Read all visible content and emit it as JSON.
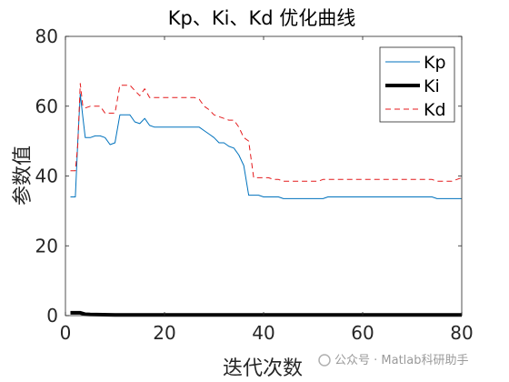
{
  "chart_data": {
    "type": "line",
    "title": "Kp、Ki、Kd 优化曲线",
    "xlabel": "迭代次数",
    "ylabel": "参数值",
    "xlim": [
      0,
      80
    ],
    "ylim": [
      0,
      80
    ],
    "xticks": [
      0,
      20,
      40,
      60,
      80
    ],
    "yticks": [
      0,
      20,
      40,
      60,
      80
    ],
    "grid": false,
    "legend_position": "top-right",
    "series": [
      {
        "name": "Kp",
        "color": "#0072BD",
        "style": "solid",
        "x": [
          1,
          2,
          2.5,
          3,
          3.5,
          4,
          5,
          6,
          7,
          8,
          9,
          10,
          11,
          12,
          13,
          14,
          15,
          16,
          17,
          18,
          19,
          20,
          21,
          22,
          23,
          24,
          25,
          26,
          27,
          28,
          29,
          30,
          31,
          32,
          33,
          34,
          35,
          36,
          37,
          38,
          39,
          40,
          41,
          42,
          43,
          44,
          45,
          46,
          47,
          48,
          49,
          50,
          51,
          52,
          53,
          54,
          55,
          56,
          57,
          58,
          59,
          60,
          61,
          62,
          63,
          64,
          65,
          66,
          67,
          68,
          69,
          70,
          71,
          72,
          73,
          74,
          75,
          76,
          77,
          78,
          79,
          80
        ],
        "values": [
          34,
          34,
          50,
          63.5,
          57,
          51,
          51,
          51.5,
          51.5,
          51,
          49,
          49.5,
          57.5,
          57.5,
          57.5,
          55.5,
          55,
          56.5,
          54.5,
          54,
          54,
          54,
          54,
          54,
          54,
          54,
          54,
          54,
          54,
          53,
          52,
          51,
          49.5,
          49.5,
          48.5,
          48,
          46,
          43,
          34.5,
          34.5,
          34.5,
          34,
          34,
          34,
          34,
          33.5,
          33.5,
          33.5,
          33.5,
          33.5,
          33.5,
          33.5,
          33.5,
          33.5,
          34,
          34,
          34,
          34,
          34,
          34,
          34,
          34,
          34,
          34,
          34,
          34,
          34,
          34,
          34,
          34,
          34,
          34,
          34,
          34,
          34,
          34,
          33.5,
          33.5,
          33.5,
          33.5,
          33.5,
          33.5
        ]
      },
      {
        "name": "Ki",
        "color": "#000000",
        "style": "solid-thick",
        "x": [
          1,
          3,
          4,
          5,
          10,
          20,
          40,
          60,
          80
        ],
        "values": [
          0.8,
          0.8,
          0.4,
          0.3,
          0.2,
          0.2,
          0.2,
          0.2,
          0.2
        ]
      },
      {
        "name": "Kd",
        "color": "#E41A1C",
        "style": "dashed",
        "x": [
          1,
          2,
          2.5,
          3,
          3.5,
          4,
          5,
          6,
          7,
          8,
          9,
          10,
          11,
          12,
          13,
          14,
          15,
          16,
          17,
          18,
          19,
          20,
          21,
          22,
          23,
          24,
          25,
          26,
          27,
          28,
          29,
          30,
          31,
          32,
          33,
          34,
          35,
          36,
          37,
          38,
          39,
          40,
          41,
          42,
          43,
          44,
          45,
          46,
          47,
          48,
          49,
          50,
          51,
          52,
          53,
          54,
          55,
          56,
          57,
          58,
          59,
          60,
          61,
          62,
          63,
          64,
          65,
          66,
          67,
          68,
          69,
          70,
          71,
          72,
          73,
          74,
          75,
          76,
          77,
          78,
          79,
          80
        ],
        "values": [
          41.5,
          41.5,
          49,
          66.5,
          60,
          59.5,
          60,
          60,
          60,
          58,
          58,
          58,
          66,
          66,
          66,
          64.5,
          63,
          65,
          62.5,
          62.5,
          62.5,
          62.5,
          62.5,
          62.5,
          62.5,
          62.5,
          62.5,
          62.5,
          62,
          60,
          59,
          57.5,
          57,
          56.5,
          56,
          56,
          54,
          51,
          50,
          39.5,
          39.5,
          39.5,
          39.5,
          39,
          39,
          38.5,
          38.5,
          38.5,
          38.5,
          38.5,
          38.5,
          38.5,
          38.5,
          39,
          39,
          39,
          39,
          39,
          39,
          39,
          39,
          39,
          39,
          39,
          39,
          39,
          39,
          39,
          39,
          39,
          39,
          39,
          39,
          39,
          39,
          39,
          38.5,
          38.5,
          38.5,
          38.5,
          39,
          39.5
        ]
      }
    ]
  },
  "watermark": "公众号 · Matlab科研助手"
}
